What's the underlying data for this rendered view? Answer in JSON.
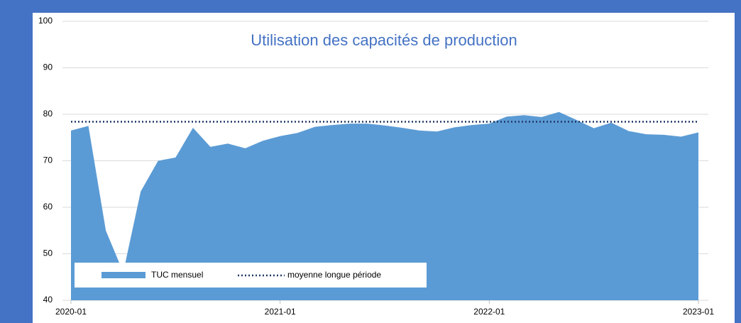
{
  "chart_data": {
    "type": "area",
    "title": "Utilisation des capacités de production",
    "categories": [
      "2020-01",
      null,
      null,
      null,
      null,
      null,
      null,
      null,
      null,
      null,
      null,
      null,
      "2021-01",
      null,
      null,
      null,
      null,
      null,
      null,
      null,
      null,
      null,
      null,
      null,
      "2022-01",
      null,
      null,
      null,
      null,
      null,
      null,
      null,
      null,
      null,
      null,
      null,
      "2023-01"
    ],
    "series": [
      {
        "name": "TUC mensuel",
        "color": "#5b9bd5",
        "values": [
          76.5,
          77.5,
          55,
          46,
          63.4,
          70,
          70.7,
          77.1,
          73,
          73.7,
          72.7,
          74.3,
          75.3,
          76,
          77.3,
          77.7,
          78,
          78,
          77.6,
          77.1,
          76.5,
          76.3,
          77.2,
          77.7,
          78,
          79.5,
          79.8,
          79.4,
          80.5,
          78.8,
          77,
          78.2,
          76.4,
          75.7,
          75.6,
          75.2,
          76.1
        ]
      },
      {
        "name": "moyenne longue période",
        "color": "#1f3864",
        "constant": 78.4
      }
    ],
    "ylim": [
      40,
      100
    ],
    "yticks": [
      40,
      50,
      60,
      70,
      80,
      90,
      100
    ],
    "grid": true
  }
}
